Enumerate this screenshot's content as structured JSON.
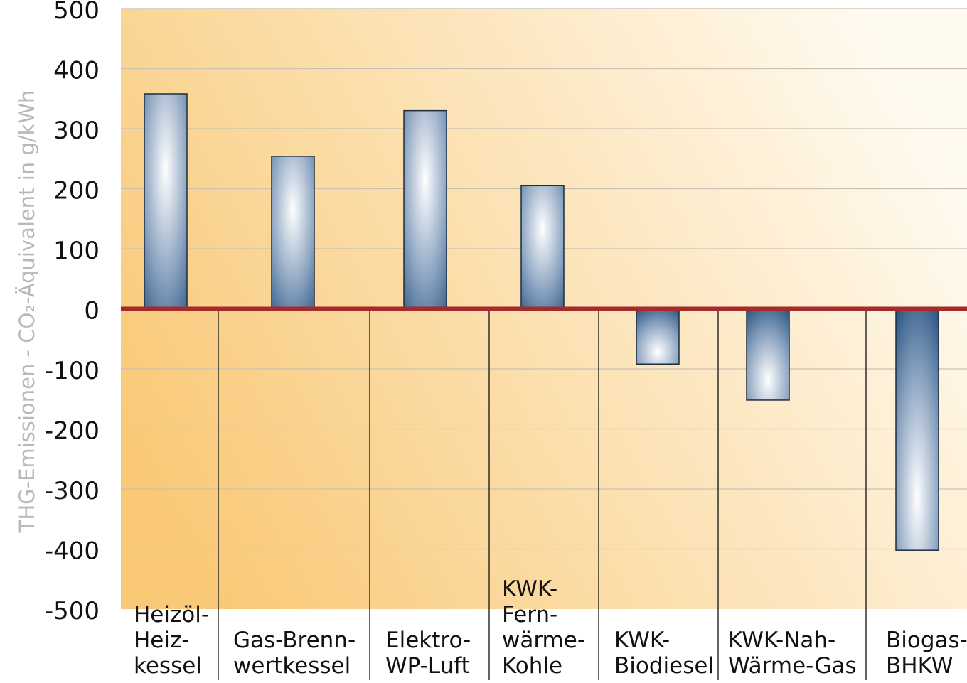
{
  "chart_data": {
    "type": "bar",
    "title": "",
    "xlabel": "",
    "ylabel": "THG-Emissionen - CO₂-Äquivalent in g/kWh",
    "ylim": [
      -500,
      500
    ],
    "yticks": [
      500,
      400,
      300,
      200,
      100,
      0,
      -100,
      -200,
      -300,
      -400,
      -500
    ],
    "ytick_labels": [
      "500",
      "400",
      "300",
      "200",
      "100",
      "0",
      "-100",
      "-200",
      "-300",
      "-400",
      "-500"
    ],
    "grid": true,
    "categories": [
      [
        "Heizöl-",
        "Heiz-",
        "kessel"
      ],
      [
        "Gas-Brenn-",
        "wertkessel"
      ],
      [
        "Elektro-",
        "WP-Luft"
      ],
      [
        "KWK-",
        "Fern-",
        "wärme-",
        "Kohle"
      ],
      [
        "KWK-",
        "Biodiesel"
      ],
      [
        "KWK-Nah-",
        "Wärme-Gas"
      ],
      [
        "Biogas-",
        "BHKW"
      ]
    ],
    "values": [
      358,
      254,
      330,
      205,
      -92,
      -152,
      -402
    ],
    "colors": {
      "background_left": "#f9c977",
      "background_right": "#fffaf0",
      "bar_dark": "#2c5684",
      "bar_light": "#ffffff",
      "zero_line": "#a52a2a",
      "grid": "#c9c2b4",
      "ylabel": "#b8b8b8"
    }
  }
}
